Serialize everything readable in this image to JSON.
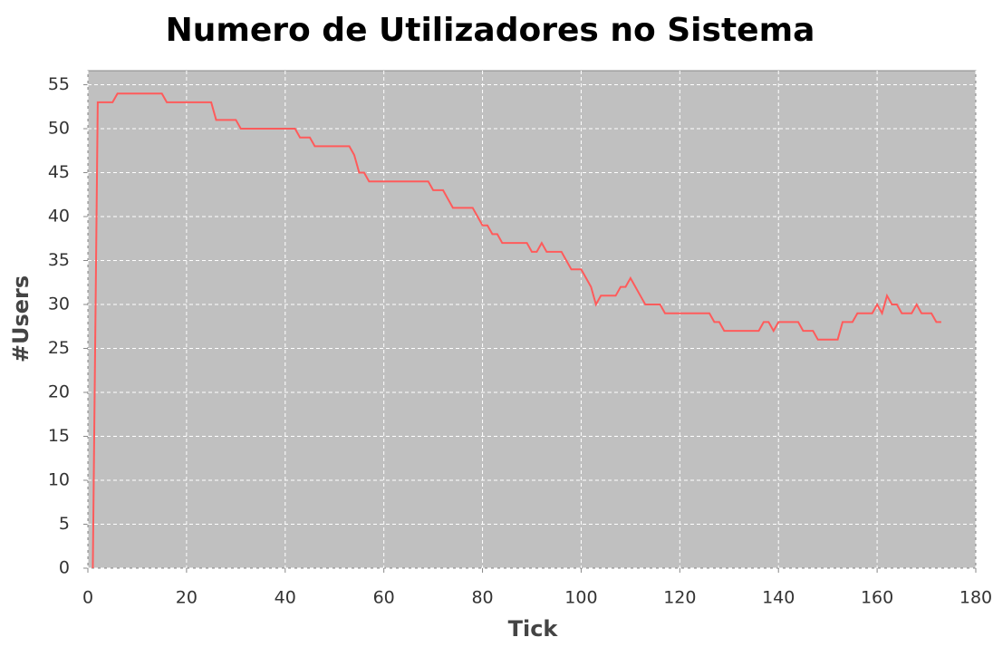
{
  "chart_data": {
    "type": "line",
    "title": "Numero de Utilizadores no Sistema",
    "x_label": "Tick",
    "y_label": "#Users",
    "x": [
      1,
      2,
      5,
      6,
      15,
      16,
      25,
      26,
      30,
      31,
      42,
      43,
      45,
      46,
      53,
      54,
      55,
      56,
      57,
      69,
      70,
      72,
      73,
      74,
      78,
      79,
      80,
      81,
      82,
      83,
      84,
      89,
      90,
      91,
      92,
      93,
      96,
      97,
      98,
      100,
      101,
      102,
      103,
      104,
      107,
      108,
      109,
      110,
      111,
      112,
      113,
      116,
      117,
      126,
      127,
      128,
      129,
      136,
      137,
      138,
      139,
      140,
      144,
      145,
      147,
      148,
      152,
      153,
      155,
      156,
      159,
      160,
      161,
      162,
      163,
      164,
      165,
      167,
      168,
      169,
      171,
      172,
      173
    ],
    "values": [
      0,
      53,
      53,
      54,
      54,
      53,
      53,
      51,
      51,
      50,
      50,
      49,
      49,
      48,
      48,
      47,
      45,
      45,
      44,
      44,
      43,
      43,
      42,
      41,
      41,
      40,
      39,
      39,
      38,
      38,
      37,
      37,
      36,
      36,
      37,
      36,
      36,
      35,
      34,
      34,
      33,
      32,
      30,
      31,
      31,
      32,
      32,
      33,
      32,
      31,
      30,
      30,
      29,
      29,
      28,
      28,
      27,
      27,
      28,
      28,
      27,
      28,
      28,
      27,
      27,
      26,
      26,
      28,
      28,
      29,
      29,
      30,
      29,
      31,
      30,
      30,
      29,
      29,
      30,
      29,
      29,
      28,
      28
    ],
    "color": "#ff5b5b",
    "xlim": [
      0,
      180
    ],
    "xticks": [
      0,
      20,
      40,
      60,
      80,
      100,
      120,
      140,
      160,
      180
    ],
    "ylim": [
      0,
      56.6
    ],
    "yticks": [
      0,
      5,
      10,
      15,
      20,
      25,
      30,
      35,
      40,
      45,
      50,
      55
    ],
    "grid": true
  }
}
